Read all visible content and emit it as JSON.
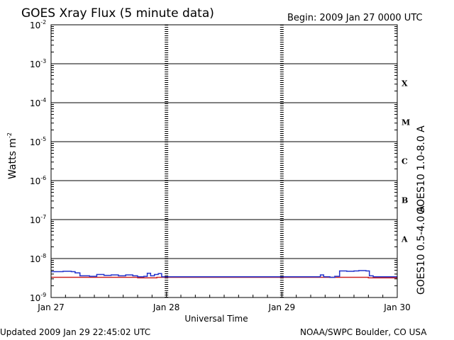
{
  "header": {
    "title": "GOES Xray Flux (5 minute data)",
    "begin": "Begin:  2009 Jan 27 0000 UTC"
  },
  "footer": {
    "updated": "Updated 2009 Jan 29 22:45:02 UTC",
    "credit": "NOAA/SWPC Boulder, CO USA"
  },
  "chart_data": {
    "type": "line",
    "title": "GOES Xray Flux (5 minute data)",
    "xlabel": "Universal Time",
    "ylabel_base": "Watts m",
    "ylabel_exp": "-2",
    "yscale": "log",
    "ylim": [
      1e-09,
      0.01
    ],
    "xlim": [
      0,
      72
    ],
    "x_unit": "hours since 2009 Jan 27 0000 UTC",
    "x_ticks": [
      {
        "x": 0,
        "label": "Jan 27"
      },
      {
        "x": 24,
        "label": "Jan 28"
      },
      {
        "x": 48,
        "label": "Jan 29"
      },
      {
        "x": 72,
        "label": "Jan 30"
      }
    ],
    "y_ticks": [
      {
        "exp": -9,
        "base": "10",
        "sup": "-9"
      },
      {
        "exp": -8,
        "base": "10",
        "sup": "-8"
      },
      {
        "exp": -7,
        "base": "10",
        "sup": "-7"
      },
      {
        "exp": -6,
        "base": "10",
        "sup": "-6"
      },
      {
        "exp": -5,
        "base": "10",
        "sup": "-5"
      },
      {
        "exp": -4,
        "base": "10",
        "sup": "-4"
      },
      {
        "exp": -3,
        "base": "10",
        "sup": "-3"
      },
      {
        "exp": -2,
        "base": "10",
        "sup": "-2"
      }
    ],
    "flare_classes": [
      {
        "label": "A",
        "exp": -7.5
      },
      {
        "label": "B",
        "exp": -6.5
      },
      {
        "label": "C",
        "exp": -5.5
      },
      {
        "label": "M",
        "exp": -4.5
      },
      {
        "label": "X",
        "exp": -3.5
      }
    ],
    "grid": true,
    "series": [
      {
        "name": "GOES10 1.0-8.0 A",
        "color": "#cc2222",
        "points": [
          [
            0,
            3.3e-09
          ],
          [
            6,
            3.3e-09
          ],
          [
            10,
            3.3e-09
          ],
          [
            18,
            3.2e-09
          ],
          [
            22,
            3.3e-09
          ],
          [
            26,
            3.3e-09
          ],
          [
            40,
            3.3e-09
          ],
          [
            56,
            3.3e-09
          ],
          [
            64,
            3.3e-09
          ],
          [
            66,
            3.2e-09
          ],
          [
            72,
            3.2e-09
          ]
        ]
      },
      {
        "name": "GOES10 0.5-4.0 A",
        "color": "#2233cc",
        "points": [
          [
            0,
            4.6e-09
          ],
          [
            2.5,
            4.7e-09
          ],
          [
            4.2,
            4.6e-09
          ],
          [
            5,
            4.3e-09
          ],
          [
            6,
            3.6e-09
          ],
          [
            8,
            3.5e-09
          ],
          [
            9.5,
            3.9e-09
          ],
          [
            11,
            3.7e-09
          ],
          [
            12.5,
            3.8e-09
          ],
          [
            14,
            3.6e-09
          ],
          [
            15.5,
            3.8e-09
          ],
          [
            17,
            3.6e-09
          ],
          [
            18,
            3.4e-09
          ],
          [
            19.3,
            3.5e-09
          ],
          [
            20,
            4.2e-09
          ],
          [
            20.7,
            3.6e-09
          ],
          [
            21.5,
            3.9e-09
          ],
          [
            22.3,
            4.1e-09
          ],
          [
            23,
            3.4e-09
          ],
          [
            26,
            3.4e-09
          ],
          [
            40,
            3.4e-09
          ],
          [
            50,
            3.4e-09
          ],
          [
            54,
            3.4e-09
          ],
          [
            56,
            3.8e-09
          ],
          [
            56.7,
            3.4e-09
          ],
          [
            58,
            3.3e-09
          ],
          [
            59,
            3.5e-09
          ],
          [
            60,
            4.8e-09
          ],
          [
            61.5,
            4.7e-09
          ],
          [
            63,
            4.8e-09
          ],
          [
            64,
            4.9e-09
          ],
          [
            65.5,
            4.8e-09
          ],
          [
            66.2,
            3.6e-09
          ],
          [
            67,
            3.4e-09
          ],
          [
            72,
            3.4e-09
          ]
        ]
      }
    ]
  }
}
